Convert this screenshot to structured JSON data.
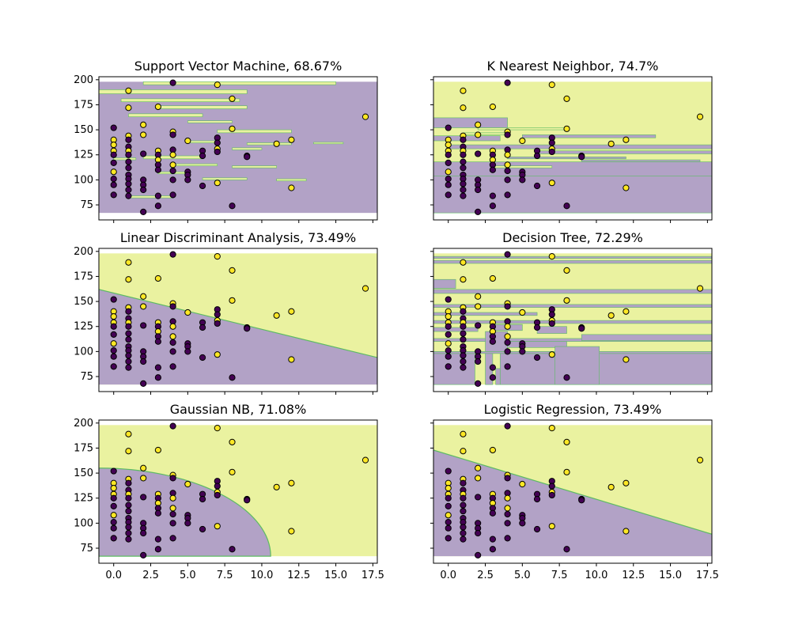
{
  "colors": {
    "class0": "#440154",
    "class1": "#fde725",
    "region0": "#b2a2c6",
    "region1": "#eaf2a0",
    "boundary": "#5dbb63"
  },
  "shared_axes": {
    "xlim": [
      -1,
      17.8
    ],
    "ylim": [
      60,
      203
    ],
    "xticks": [
      0,
      2.5,
      5,
      7.5,
      10,
      12.5,
      15,
      17.5
    ],
    "xtick_labels": [
      "0.0",
      "2.5",
      "5.0",
      "7.5",
      "10.0",
      "12.5",
      "15.0",
      "17.5"
    ],
    "yticks": [
      75,
      100,
      125,
      150,
      175,
      200
    ],
    "ytick_labels": [
      "75",
      "100",
      "125",
      "150",
      "175",
      "200"
    ],
    "region_extent": {
      "x": [
        -1,
        17.8
      ],
      "y": [
        67,
        198
      ]
    }
  },
  "chart_data": [
    {
      "type": "scatter",
      "title": "Support Vector Machine, 68.67%",
      "boundary_kind": "islands",
      "points": [
        {
          "x": 0,
          "y": 152,
          "c": 0
        },
        {
          "x": 0,
          "y": 140,
          "c": 1
        },
        {
          "x": 0,
          "y": 135,
          "c": 1
        },
        {
          "x": 0,
          "y": 129,
          "c": 1
        },
        {
          "x": 0,
          "y": 125,
          "c": 0
        },
        {
          "x": 0,
          "y": 117,
          "c": 0
        },
        {
          "x": 0,
          "y": 108,
          "c": 1
        },
        {
          "x": 0,
          "y": 101,
          "c": 0
        },
        {
          "x": 0,
          "y": 95,
          "c": 0
        },
        {
          "x": 0,
          "y": 85,
          "c": 0
        },
        {
          "x": 1,
          "y": 189,
          "c": 1
        },
        {
          "x": 1,
          "y": 172,
          "c": 1
        },
        {
          "x": 1,
          "y": 144,
          "c": 1
        },
        {
          "x": 1,
          "y": 140,
          "c": 0
        },
        {
          "x": 1,
          "y": 133,
          "c": 0
        },
        {
          "x": 1,
          "y": 129,
          "c": 1
        },
        {
          "x": 1,
          "y": 125,
          "c": 0
        },
        {
          "x": 1,
          "y": 118,
          "c": 0
        },
        {
          "x": 1,
          "y": 112,
          "c": 0
        },
        {
          "x": 1,
          "y": 105,
          "c": 0
        },
        {
          "x": 1,
          "y": 101,
          "c": 0
        },
        {
          "x": 1,
          "y": 96,
          "c": 0
        },
        {
          "x": 1,
          "y": 90,
          "c": 0
        },
        {
          "x": 1,
          "y": 84,
          "c": 0
        },
        {
          "x": 2,
          "y": 155,
          "c": 1
        },
        {
          "x": 2,
          "y": 145,
          "c": 1
        },
        {
          "x": 2,
          "y": 126,
          "c": 0
        },
        {
          "x": 2,
          "y": 100,
          "c": 0
        },
        {
          "x": 2,
          "y": 95,
          "c": 0
        },
        {
          "x": 2,
          "y": 90,
          "c": 0
        },
        {
          "x": 2,
          "y": 68,
          "c": 0
        },
        {
          "x": 3,
          "y": 173,
          "c": 1
        },
        {
          "x": 3,
          "y": 129,
          "c": 1
        },
        {
          "x": 3,
          "y": 125,
          "c": 0
        },
        {
          "x": 3,
          "y": 120,
          "c": 1
        },
        {
          "x": 3,
          "y": 115,
          "c": 0
        },
        {
          "x": 3,
          "y": 110,
          "c": 0
        },
        {
          "x": 3,
          "y": 84,
          "c": 0
        },
        {
          "x": 3,
          "y": 74,
          "c": 0
        },
        {
          "x": 4,
          "y": 197,
          "c": 0
        },
        {
          "x": 4,
          "y": 148,
          "c": 1
        },
        {
          "x": 4,
          "y": 145,
          "c": 0
        },
        {
          "x": 4,
          "y": 130,
          "c": 0
        },
        {
          "x": 4,
          "y": 125,
          "c": 1
        },
        {
          "x": 4,
          "y": 115,
          "c": 1
        },
        {
          "x": 4,
          "y": 109,
          "c": 0
        },
        {
          "x": 4,
          "y": 100,
          "c": 0
        },
        {
          "x": 4,
          "y": 85,
          "c": 0
        },
        {
          "x": 5,
          "y": 139,
          "c": 1
        },
        {
          "x": 5,
          "y": 108,
          "c": 0
        },
        {
          "x": 5,
          "y": 105,
          "c": 0
        },
        {
          "x": 5,
          "y": 100,
          "c": 0
        },
        {
          "x": 6,
          "y": 129,
          "c": 0
        },
        {
          "x": 6,
          "y": 124,
          "c": 0
        },
        {
          "x": 6,
          "y": 94,
          "c": 0
        },
        {
          "x": 7,
          "y": 195,
          "c": 1
        },
        {
          "x": 7,
          "y": 142,
          "c": 0
        },
        {
          "x": 7,
          "y": 137,
          "c": 0
        },
        {
          "x": 7,
          "y": 131,
          "c": 1
        },
        {
          "x": 7,
          "y": 128,
          "c": 0
        },
        {
          "x": 7,
          "y": 97,
          "c": 1
        },
        {
          "x": 8,
          "y": 181,
          "c": 1
        },
        {
          "x": 8,
          "y": 151,
          "c": 1
        },
        {
          "x": 8,
          "y": 74,
          "c": 0
        },
        {
          "x": 9,
          "y": 124,
          "c": 0
        },
        {
          "x": 9,
          "y": 123,
          "c": 0
        },
        {
          "x": 11,
          "y": 136,
          "c": 1
        },
        {
          "x": 12,
          "y": 140,
          "c": 1
        },
        {
          "x": 12,
          "y": 92,
          "c": 1
        },
        {
          "x": 17,
          "y": 163,
          "c": 1
        }
      ]
    },
    {
      "type": "scatter",
      "title": "K Nearest Neighbor, 74.7%",
      "boundary_kind": "knn",
      "points": "same"
    },
    {
      "type": "scatter",
      "title": "Linear Discriminant Analysis, 73.49%",
      "boundary_kind": "linear",
      "boundary_line": [
        [
          -1,
          162
        ],
        [
          17.8,
          94
        ]
      ],
      "points": "same"
    },
    {
      "type": "scatter",
      "title": "Decision Tree, 72.29%",
      "boundary_kind": "tree",
      "points": "same"
    },
    {
      "type": "scatter",
      "title": "Gaussian NB, 71.08%",
      "boundary_kind": "ellipse",
      "points": "same"
    },
    {
      "type": "scatter",
      "title": "Logistic Regression, 73.49%",
      "boundary_kind": "linear",
      "boundary_line": [
        [
          -1,
          173
        ],
        [
          17.8,
          89
        ]
      ],
      "points": "same"
    }
  ]
}
